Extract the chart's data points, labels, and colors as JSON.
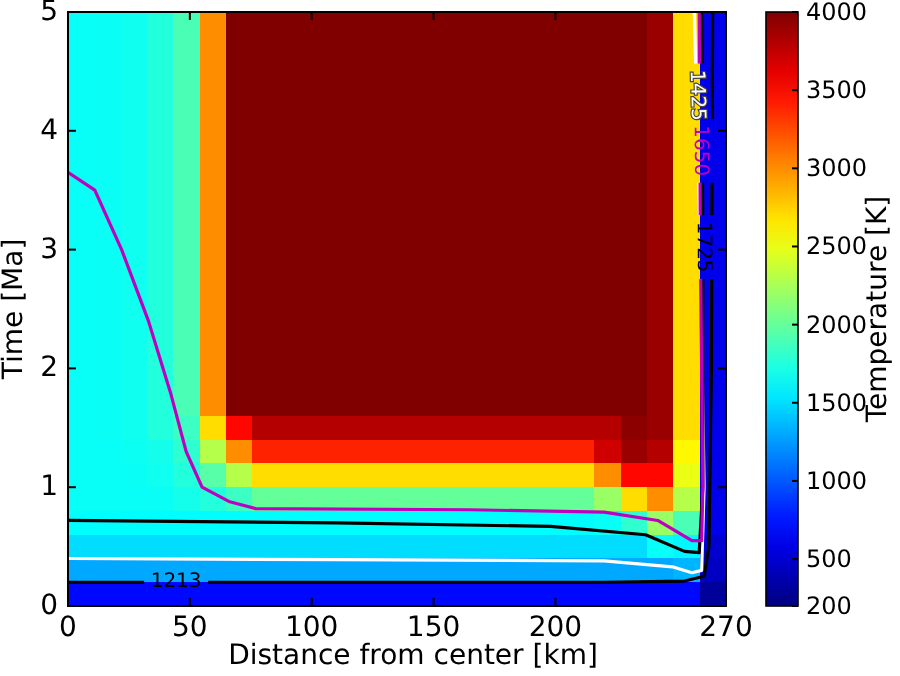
{
  "chart_data": {
    "type": "heatmap",
    "xlabel": "Distance from center [km]",
    "ylabel": "Time [Ma]",
    "clabel": "Temperature [K]",
    "x": [
      5.4,
      16.2,
      27,
      37.8,
      48.6,
      59.4,
      70.2,
      81,
      91.8,
      102.6,
      113.4,
      124.2,
      135,
      145.8,
      156.6,
      167.4,
      178.2,
      189,
      199.8,
      210.6,
      221.4,
      232.2,
      243,
      253.8,
      264.6
    ],
    "y": [
      4.9,
      4.7,
      4.5,
      4.3,
      4.1,
      3.9,
      3.7,
      3.5,
      3.3,
      3.1,
      2.9,
      2.7,
      2.5,
      2.3,
      2.1,
      1.9,
      1.7,
      1.5,
      1.3,
      1.1,
      0.9,
      0.7,
      0.5,
      0.3,
      0.1
    ],
    "xlim": [
      0,
      270
    ],
    "xticks": [
      0,
      50,
      100,
      150,
      200,
      270
    ],
    "ylim": [
      0,
      5
    ],
    "yticks": [
      0,
      1,
      2,
      3,
      4,
      5
    ],
    "clim": [
      200,
      4000
    ],
    "cticks": [
      200,
      500,
      1000,
      1500,
      2000,
      2500,
      3000,
      3500,
      4000
    ],
    "cells": [
      [
        1650,
        1660,
        1680,
        1750,
        1900,
        3000,
        4000,
        4000,
        4000,
        4000,
        4000,
        4000,
        4000,
        4000,
        4000,
        4000,
        4000,
        4000,
        4000,
        4000,
        4000,
        4000,
        3900,
        2700,
        600
      ],
      [
        1650,
        1660,
        1680,
        1750,
        1900,
        3000,
        4000,
        4000,
        4000,
        4000,
        4000,
        4000,
        4000,
        4000,
        4000,
        4000,
        4000,
        4000,
        4000,
        4000,
        4000,
        4000,
        3900,
        2700,
        600
      ],
      [
        1650,
        1660,
        1680,
        1750,
        1900,
        3000,
        4000,
        4000,
        4000,
        4000,
        4000,
        4000,
        4000,
        4000,
        4000,
        4000,
        4000,
        4000,
        4000,
        4000,
        4000,
        4000,
        3900,
        2700,
        600
      ],
      [
        1650,
        1660,
        1680,
        1750,
        1900,
        3000,
        4000,
        4000,
        4000,
        4000,
        4000,
        4000,
        4000,
        4000,
        4000,
        4000,
        4000,
        4000,
        4000,
        4000,
        4000,
        4000,
        3900,
        2700,
        600
      ],
      [
        1650,
        1660,
        1680,
        1750,
        1900,
        3000,
        4000,
        4000,
        4000,
        4000,
        4000,
        4000,
        4000,
        4000,
        4000,
        4000,
        4000,
        4000,
        4000,
        4000,
        4000,
        4000,
        3900,
        2700,
        600
      ],
      [
        1650,
        1660,
        1680,
        1750,
        1900,
        3000,
        4000,
        4000,
        4000,
        4000,
        4000,
        4000,
        4000,
        4000,
        4000,
        4000,
        4000,
        4000,
        4000,
        4000,
        4000,
        4000,
        3900,
        2700,
        600
      ],
      [
        1650,
        1660,
        1680,
        1750,
        1900,
        3000,
        4000,
        4000,
        4000,
        4000,
        4000,
        4000,
        4000,
        4000,
        4000,
        4000,
        4000,
        4000,
        4000,
        4000,
        4000,
        4000,
        3900,
        2700,
        600
      ],
      [
        1650,
        1660,
        1680,
        1750,
        1900,
        3000,
        4000,
        4000,
        4000,
        4000,
        4000,
        4000,
        4000,
        4000,
        4000,
        4000,
        4000,
        4000,
        4000,
        4000,
        4000,
        4000,
        3900,
        2700,
        600
      ],
      [
        1650,
        1660,
        1680,
        1750,
        1900,
        3000,
        4000,
        4000,
        4000,
        4000,
        4000,
        4000,
        4000,
        4000,
        4000,
        4000,
        4000,
        4000,
        4000,
        4000,
        4000,
        4000,
        3900,
        2700,
        600
      ],
      [
        1650,
        1660,
        1680,
        1750,
        1900,
        3000,
        4000,
        4000,
        4000,
        4000,
        4000,
        4000,
        4000,
        4000,
        4000,
        4000,
        4000,
        4000,
        4000,
        4000,
        4000,
        4000,
        3900,
        2700,
        600
      ],
      [
        1650,
        1660,
        1680,
        1750,
        1900,
        3000,
        4000,
        4000,
        4000,
        4000,
        4000,
        4000,
        4000,
        4000,
        4000,
        4000,
        4000,
        4000,
        4000,
        4000,
        4000,
        4000,
        3900,
        2700,
        600
      ],
      [
        1650,
        1660,
        1680,
        1750,
        1900,
        3000,
        4000,
        4000,
        4000,
        4000,
        4000,
        4000,
        4000,
        4000,
        4000,
        4000,
        4000,
        4000,
        4000,
        4000,
        4000,
        4000,
        3900,
        2700,
        600
      ],
      [
        1650,
        1660,
        1680,
        1750,
        1900,
        3000,
        4000,
        4000,
        4000,
        4000,
        4000,
        4000,
        4000,
        4000,
        4000,
        4000,
        4000,
        4000,
        4000,
        4000,
        4000,
        4000,
        3900,
        2700,
        600
      ],
      [
        1650,
        1660,
        1680,
        1750,
        1900,
        3000,
        4000,
        4000,
        4000,
        4000,
        4000,
        4000,
        4000,
        4000,
        4000,
        4000,
        4000,
        4000,
        4000,
        4000,
        4000,
        4000,
        3900,
        2700,
        600
      ],
      [
        1650,
        1660,
        1680,
        1750,
        1900,
        3000,
        4000,
        4000,
        4000,
        4000,
        4000,
        4000,
        4000,
        4000,
        4000,
        4000,
        4000,
        4000,
        4000,
        4000,
        4000,
        4000,
        3900,
        2700,
        600
      ],
      [
        1650,
        1660,
        1680,
        1750,
        1900,
        3000,
        4000,
        4000,
        4000,
        4000,
        4000,
        4000,
        4000,
        4000,
        4000,
        4000,
        4000,
        4000,
        4000,
        4000,
        4000,
        4000,
        3900,
        2700,
        600
      ],
      [
        1650,
        1660,
        1680,
        1750,
        1900,
        3000,
        4000,
        4000,
        4000,
        4000,
        4000,
        4000,
        4000,
        4000,
        4000,
        4000,
        4000,
        4000,
        4000,
        4000,
        4000,
        4000,
        3900,
        2700,
        600
      ],
      [
        1650,
        1660,
        1680,
        1750,
        1850,
        2700,
        3500,
        3800,
        3800,
        3800,
        3800,
        3800,
        3800,
        3800,
        3800,
        3800,
        3800,
        3800,
        3800,
        3800,
        3800,
        3950,
        3900,
        2700,
        600
      ],
      [
        1650,
        1650,
        1670,
        1700,
        1800,
        2300,
        3000,
        3400,
        3400,
        3400,
        3400,
        3400,
        3400,
        3400,
        3400,
        3400,
        3400,
        3400,
        3400,
        3400,
        3700,
        3900,
        3800,
        2600,
        600
      ],
      [
        1650,
        1650,
        1660,
        1680,
        1750,
        1950,
        2300,
        2700,
        2700,
        2700,
        2700,
        2700,
        2700,
        2700,
        2700,
        2700,
        2700,
        2700,
        2700,
        2700,
        3000,
        3500,
        3500,
        2500,
        600
      ],
      [
        1650,
        1650,
        1650,
        1660,
        1700,
        1750,
        1850,
        2000,
        2000,
        2000,
        2000,
        2000,
        2000,
        2000,
        2000,
        2000,
        2000,
        2000,
        2000,
        2000,
        2200,
        2700,
        3000,
        2300,
        600
      ],
      [
        1620,
        1620,
        1620,
        1620,
        1620,
        1620,
        1620,
        1620,
        1620,
        1620,
        1620,
        1620,
        1620,
        1620,
        1620,
        1620,
        1620,
        1620,
        1620,
        1620,
        1650,
        1800,
        2200,
        1900,
        600
      ],
      [
        1500,
        1500,
        1500,
        1500,
        1500,
        1500,
        1500,
        1500,
        1500,
        1500,
        1500,
        1500,
        1500,
        1500,
        1500,
        1500,
        1500,
        1500,
        1500,
        1500,
        1500,
        1500,
        1650,
        1600,
        500
      ],
      [
        1300,
        1300,
        1300,
        1300,
        1300,
        1300,
        1300,
        1300,
        1300,
        1300,
        1300,
        1300,
        1300,
        1300,
        1300,
        1300,
        1300,
        1300,
        1300,
        1300,
        1300,
        1300,
        1300,
        1350,
        450
      ],
      [
        700,
        700,
        700,
        700,
        700,
        700,
        700,
        700,
        700,
        700,
        700,
        700,
        700,
        700,
        700,
        700,
        700,
        700,
        700,
        700,
        700,
        700,
        700,
        700,
        300
      ]
    ],
    "series": [
      {
        "type": "line",
        "name": "1213",
        "color": "#000000",
        "x": [
          0,
          110,
          220,
          253,
          261,
          263,
          264,
          264.5
        ],
        "values": [
          0.2,
          0.2,
          0.2,
          0.21,
          0.25,
          0.5,
          2,
          5
        ]
      },
      {
        "type": "line",
        "name": "1425",
        "color": "#ffffff",
        "x": [
          0,
          110,
          220,
          248,
          256,
          260,
          261,
          259.5,
          257
        ],
        "values": [
          0.4,
          0.39,
          0.38,
          0.33,
          0.28,
          0.3,
          1,
          3,
          5
        ]
      },
      {
        "type": "line",
        "name": "1725",
        "color": "#000000",
        "x": [
          0,
          110,
          198,
          237,
          253,
          259,
          260.5,
          260.5,
          260
        ],
        "values": [
          0.72,
          0.7,
          0.67,
          0.6,
          0.46,
          0.45,
          1,
          3,
          5
        ]
      },
      {
        "type": "line",
        "name": "1650",
        "color": "#bf00bf",
        "x": [
          0,
          11,
          22,
          33,
          42,
          48.5,
          55,
          66,
          77,
          165,
          220,
          242,
          256,
          260,
          260.5,
          259.5,
          259
        ],
        "values": [
          3.65,
          3.5,
          3.0,
          2.4,
          1.8,
          1.3,
          1.0,
          0.88,
          0.82,
          0.81,
          0.79,
          0.72,
          0.55,
          0.55,
          1,
          3,
          5
        ]
      }
    ]
  }
}
